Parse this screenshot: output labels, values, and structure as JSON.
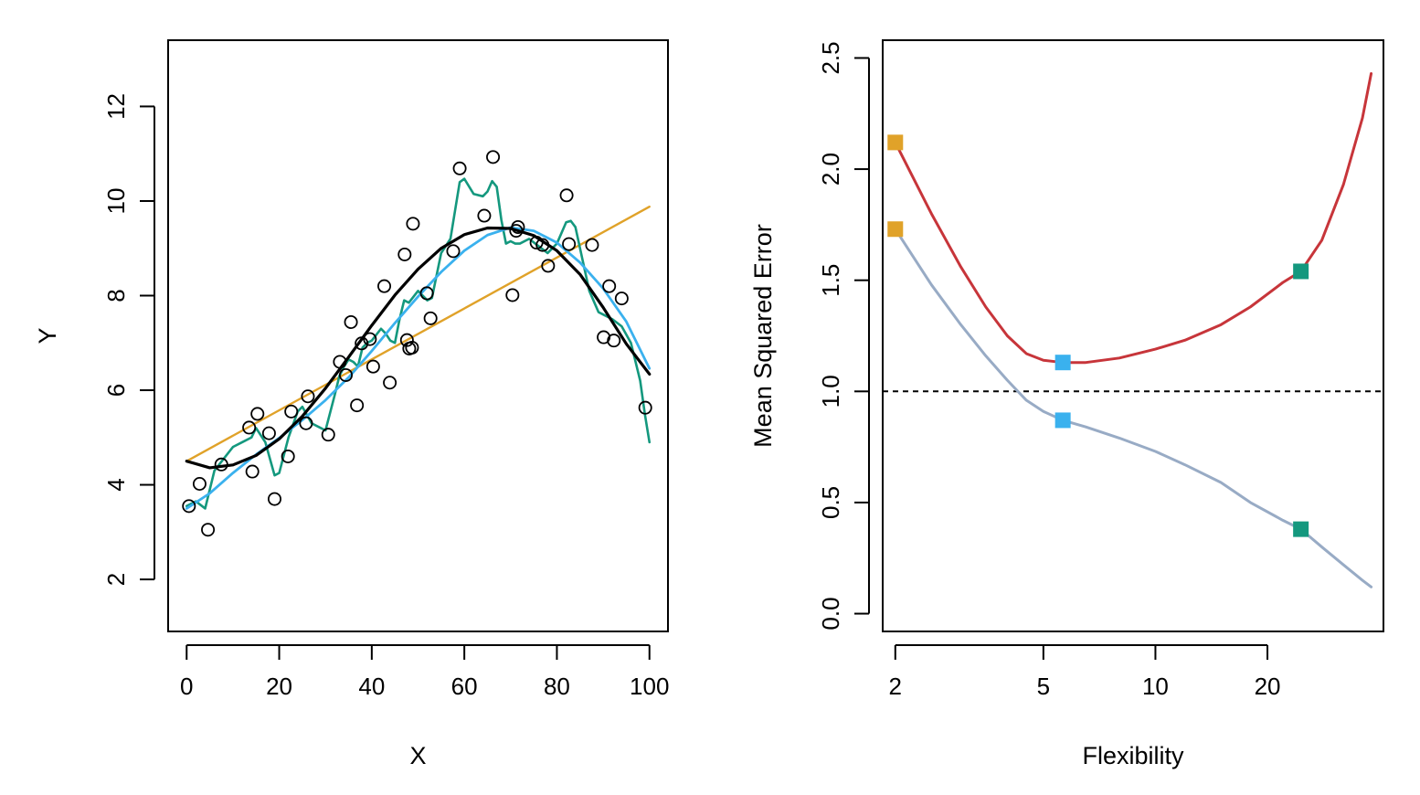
{
  "colors": {
    "truth": "#000000",
    "linear": "#E0A229",
    "smooth_moderate": "#3AB1EE",
    "smooth_wiggly": "#14987E",
    "test_mse": "#C7353A",
    "train_mse": "#98ABC5",
    "points_stroke": "#000000",
    "reference_line": "#000000"
  },
  "chart_data": [
    {
      "type": "scatter",
      "xlabel": "X",
      "ylabel": "Y",
      "xlim": [
        -4,
        104
      ],
      "ylim": [
        0.9,
        13.4
      ],
      "xticks": [
        0,
        20,
        40,
        60,
        80,
        100
      ],
      "yticks": [
        2,
        4,
        6,
        8,
        10,
        12
      ],
      "grid": false,
      "legend": "none",
      "points": {
        "x": [
          0.5,
          2.8,
          4.6,
          7.5,
          13.5,
          14.2,
          15.3,
          17.8,
          19,
          21.9,
          22.6,
          25.8,
          26.2,
          30.6,
          33.1,
          34.4,
          35.5,
          36.8,
          37.8,
          39.6,
          40.3,
          42.7,
          43.9,
          47.1,
          47.6,
          48.1,
          48.7,
          48.9,
          51.9,
          52.7,
          57.6,
          59,
          64.3,
          66.2,
          70.4,
          71.2,
          71.6,
          75.6,
          76.9,
          78.1,
          82.1,
          82.6,
          87.6,
          90.1,
          91.3,
          92.3,
          94,
          99.1
        ],
        "y": [
          3.55,
          4.02,
          3.05,
          4.43,
          5.21,
          4.28,
          5.5,
          5.09,
          3.7,
          4.6,
          5.55,
          5.3,
          5.87,
          5.06,
          6.6,
          6.32,
          7.44,
          5.68,
          6.99,
          7.08,
          6.5,
          8.2,
          6.16,
          8.87,
          7.06,
          6.88,
          6.9,
          9.52,
          8.05,
          7.52,
          8.94,
          10.69,
          9.69,
          10.93,
          8.01,
          9.37,
          9.45,
          9.12,
          9.07,
          8.63,
          10.12,
          9.09,
          9.07,
          7.12,
          8.2,
          7.05,
          7.94,
          5.63
        ]
      },
      "series": [
        {
          "x": [
            0,
            5,
            10,
            15,
            20,
            25,
            30,
            35,
            40,
            45,
            50,
            55,
            60,
            65,
            70,
            75,
            80,
            85,
            90,
            95,
            100
          ],
          "values": [
            4.5,
            4.36,
            4.42,
            4.62,
            4.97,
            5.45,
            6.04,
            6.7,
            7.37,
            8.01,
            8.56,
            9,
            9.29,
            9.43,
            9.42,
            9.27,
            8.95,
            8.45,
            7.75,
            6.98,
            6.34
          ]
        },
        {
          "x": [
            0,
            100
          ],
          "values": [
            4.5,
            9.88
          ]
        },
        {
          "x": [
            0,
            5,
            10,
            15,
            20,
            25,
            30,
            35,
            40,
            45,
            50,
            55,
            60,
            65,
            70,
            75,
            80,
            85,
            90,
            95,
            100
          ],
          "values": [
            3.5,
            3.82,
            4.25,
            4.64,
            4.99,
            5.37,
            5.79,
            6.27,
            6.83,
            7.42,
            7.98,
            8.5,
            8.95,
            9.28,
            9.44,
            9.37,
            9.12,
            8.7,
            8.15,
            7.45,
            6.46
          ]
        },
        {
          "x": [
            0,
            2,
            4,
            6,
            8,
            10,
            12,
            14,
            15,
            17,
            19,
            20,
            22,
            24,
            25,
            27,
            29,
            30,
            32,
            33,
            34,
            35,
            36,
            37,
            38,
            39,
            40,
            42,
            43,
            44,
            45,
            46,
            47,
            48,
            50,
            52,
            53,
            55,
            57,
            58,
            59,
            60,
            62,
            64,
            65,
            66,
            67,
            68,
            69,
            70,
            71,
            72,
            74,
            76,
            78,
            80,
            82,
            83,
            84,
            85,
            87,
            89,
            90,
            92,
            94,
            96,
            98,
            99,
            100
          ],
          "values": [
            3.55,
            3.65,
            3.5,
            4.3,
            4.55,
            4.8,
            4.9,
            5.0,
            5.2,
            4.9,
            4.2,
            4.25,
            5.0,
            5.55,
            5.65,
            5.3,
            5.2,
            5.15,
            5.9,
            6.3,
            6.5,
            6.65,
            6.6,
            6.5,
            6.9,
            7.0,
            7.05,
            7.3,
            7.2,
            7.05,
            7.0,
            7.5,
            7.9,
            7.85,
            8.1,
            7.9,
            7.95,
            8.9,
            9.2,
            9.8,
            10.4,
            10.47,
            10.15,
            10.1,
            10.2,
            10.42,
            10.3,
            9.6,
            9.1,
            9.15,
            9.1,
            9.1,
            9.2,
            9.05,
            8.9,
            9.1,
            9.55,
            9.58,
            9.45,
            9.0,
            8.1,
            7.65,
            7.6,
            7.5,
            7.35,
            7.0,
            6.2,
            5.5,
            4.9
          ]
        }
      ]
    },
    {
      "type": "line",
      "xlabel": "Flexibility",
      "ylabel": "Mean Squared Error",
      "x_scale": "log",
      "xlim": [
        1.85,
        41
      ],
      "ylim": [
        -0.08,
        2.58
      ],
      "xticks": [
        2,
        5,
        10,
        20
      ],
      "yticks": [
        0.0,
        0.5,
        1.0,
        1.5,
        2.0,
        2.5
      ],
      "ytick_labels": [
        "0.0",
        "0.5",
        "1.0",
        "1.5",
        "2.0",
        "2.5"
      ],
      "grid": false,
      "legend": "none",
      "reference_line_y": 1.0,
      "series": [
        {
          "x": [
            2,
            2.5,
            3,
            3.5,
            4,
            4.5,
            5,
            5.64,
            6.5,
            8,
            10,
            12,
            15,
            18,
            22,
            24.6,
            28,
            32,
            36,
            38
          ],
          "values": [
            2.12,
            1.8,
            1.56,
            1.38,
            1.25,
            1.17,
            1.14,
            1.13,
            1.13,
            1.15,
            1.19,
            1.23,
            1.3,
            1.38,
            1.49,
            1.54,
            1.68,
            1.93,
            2.23,
            2.43
          ]
        },
        {
          "x": [
            2,
            2.5,
            3,
            3.5,
            4,
            4.5,
            5,
            5.64,
            6.5,
            8,
            10,
            12,
            15,
            18,
            22,
            24.6,
            28,
            32,
            36,
            38
          ],
          "values": [
            1.73,
            1.48,
            1.3,
            1.16,
            1.05,
            0.96,
            0.91,
            0.87,
            0.84,
            0.79,
            0.73,
            0.67,
            0.59,
            0.5,
            0.42,
            0.38,
            0.3,
            0.22,
            0.15,
            0.12
          ]
        }
      ],
      "markers": [
        {
          "x": 2,
          "y": 2.12,
          "color_key": "linear"
        },
        {
          "x": 2,
          "y": 1.73,
          "color_key": "linear"
        },
        {
          "x": 5.64,
          "y": 1.13,
          "color_key": "smooth_moderate"
        },
        {
          "x": 5.64,
          "y": 0.87,
          "color_key": "smooth_moderate"
        },
        {
          "x": 24.6,
          "y": 1.54,
          "color_key": "smooth_wiggly"
        },
        {
          "x": 24.6,
          "y": 0.38,
          "color_key": "smooth_wiggly"
        }
      ]
    }
  ]
}
